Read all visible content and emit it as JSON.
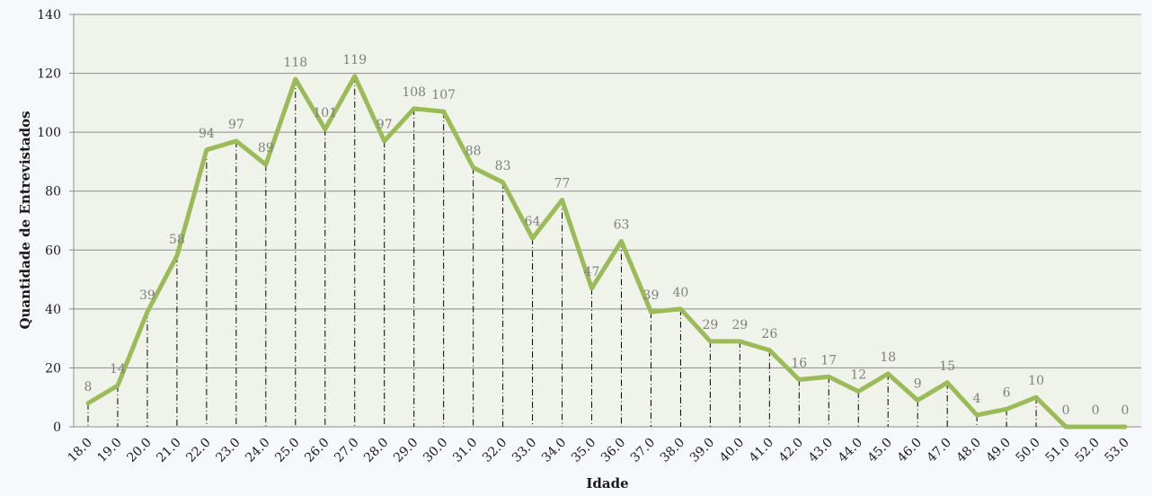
{
  "chart_data": {
    "type": "line",
    "title": "",
    "xlabel": "Idade",
    "ylabel": "Quantidade de Entrevistados",
    "ylim": [
      0,
      140
    ],
    "yticks": [
      0,
      20,
      40,
      60,
      80,
      100,
      120,
      140
    ],
    "grid": "horizontal",
    "drop_lines": true,
    "colors": {
      "line": "#9bbb59",
      "plot_bg": "#f0f3e9",
      "grid": "#8c8c8c",
      "label": "#7f7f7f"
    },
    "categories": [
      "18.0",
      "19.0",
      "20.0",
      "21.0",
      "22.0",
      "23.0",
      "24.0",
      "25.0",
      "26.0",
      "27.0",
      "28.0",
      "29.0",
      "30.0",
      "31.0",
      "32.0",
      "33.0",
      "34.0",
      "35.0",
      "36.0",
      "37.0",
      "38.0",
      "39.0",
      "40.0",
      "41.0",
      "42.0",
      "43.0",
      "44.0",
      "45.0",
      "46.0",
      "47.0",
      "48.0",
      "49.0",
      "50.0",
      "51.0",
      "52.0",
      "53.0"
    ],
    "values": [
      8,
      14,
      39,
      58,
      94,
      97,
      89,
      118,
      101,
      119,
      97,
      108,
      107,
      88,
      83,
      64,
      77,
      47,
      63,
      39,
      40,
      29,
      29,
      26,
      16,
      17,
      12,
      18,
      9,
      15,
      4,
      6,
      10,
      0,
      0,
      0
    ]
  }
}
